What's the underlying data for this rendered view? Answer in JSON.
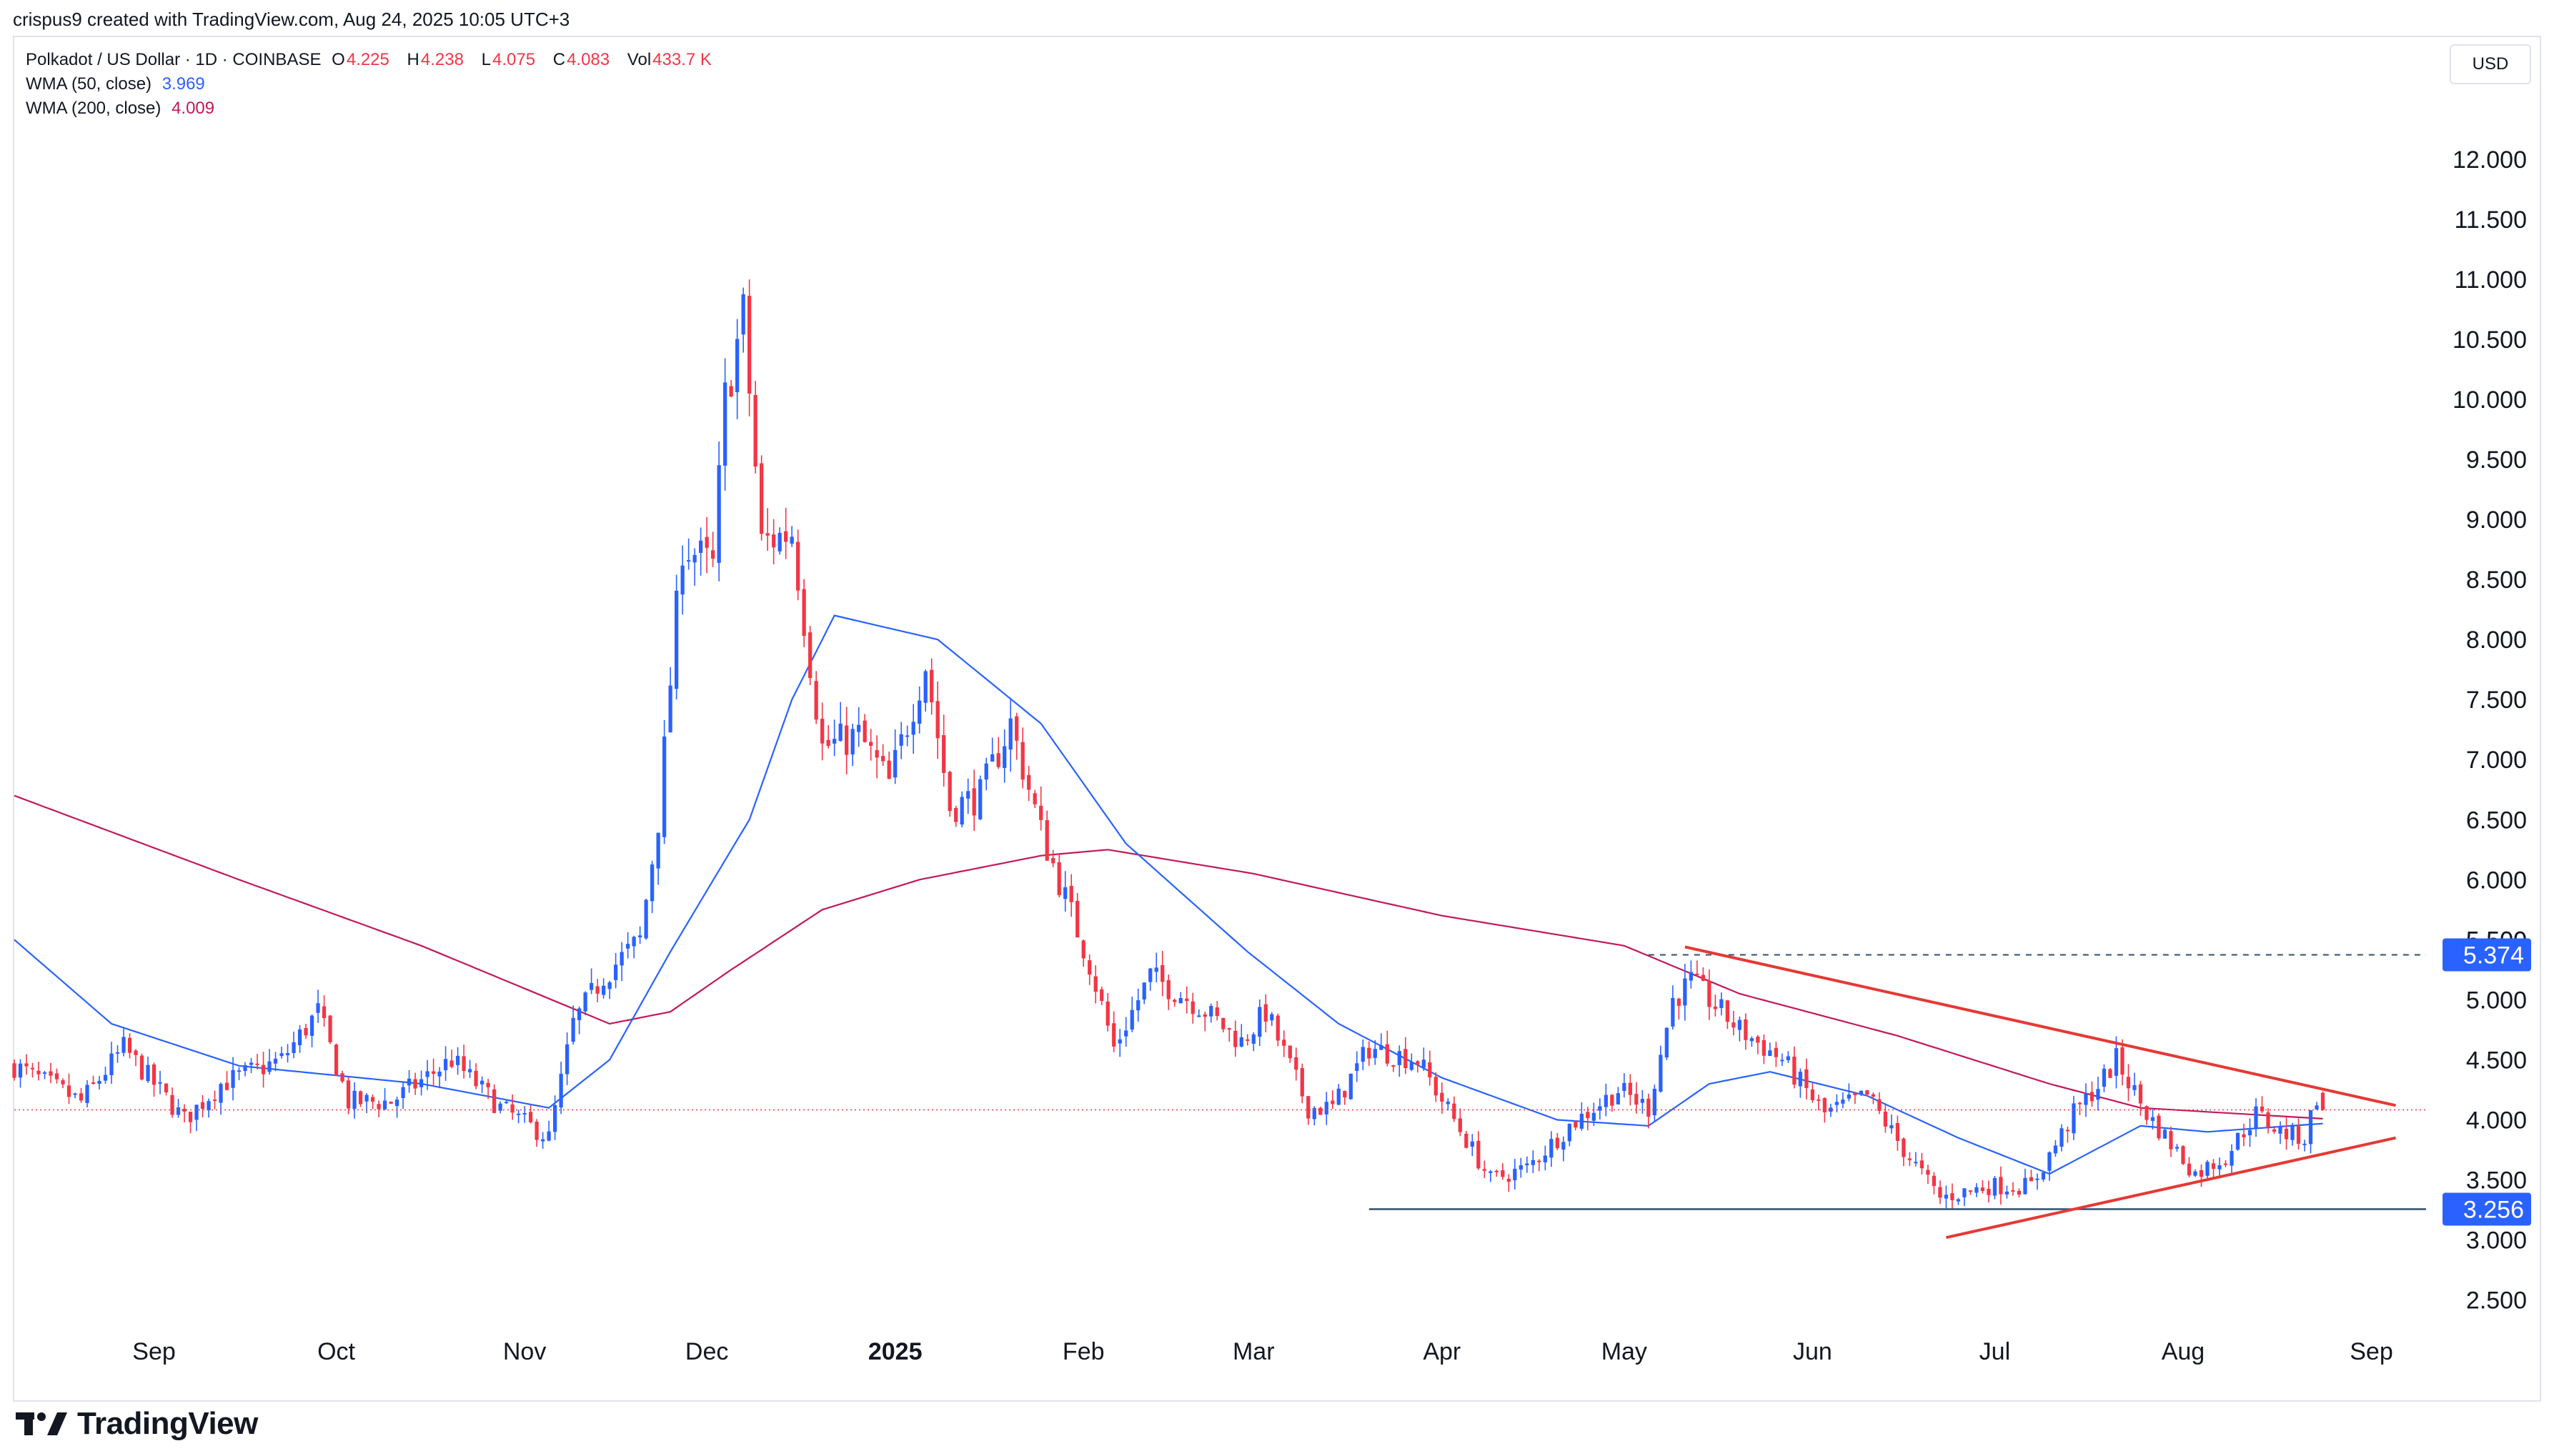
{
  "header": {
    "attribution": "crispus9 created with TradingView.com, Aug 24, 2025 10:05 UTC+3"
  },
  "legend": {
    "symbol": "Polkadot / US Dollar · 1D · COINBASE",
    "open_key": "O",
    "open": "4.225",
    "high_key": "H",
    "high": "4.238",
    "low_key": "L",
    "low": "4.075",
    "close_key": "C",
    "close": "4.083",
    "vol_key": "Vol",
    "volume": "433.7 K",
    "wma50_label": "WMA (50, close)",
    "wma50_value": "3.969",
    "wma200_label": "WMA (200, close)",
    "wma200_value": "4.009"
  },
  "currency": "USD",
  "brand": {
    "name": "TradingView",
    "logo_icon": "tradingview-logo-icon"
  },
  "colors": {
    "up": "#2962ff",
    "down": "#f23645",
    "wma50": "#2962ff",
    "wma200": "#c2185b",
    "trendline": "#e53935",
    "price_tag": "#2962ff",
    "support": "#2f4f6f"
  },
  "chart_data": {
    "type": "candlestick",
    "title": "Polkadot / US Dollar · 1D · COINBASE",
    "ylim": [
      2.2,
      12.6
    ],
    "y_ticks": [
      "2.500",
      "3.000",
      "3.500",
      "4.000",
      "4.500",
      "5.000",
      "5.500",
      "6.000",
      "6.500",
      "7.000",
      "7.500",
      "8.000",
      "8.500",
      "9.000",
      "9.500",
      "10.000",
      "10.500",
      "11.000",
      "11.500",
      "12.000"
    ],
    "x_ticks": [
      {
        "label": "Sep",
        "date": "2024-09-01"
      },
      {
        "label": "Oct",
        "date": "2024-10-01"
      },
      {
        "label": "Nov",
        "date": "2024-11-01"
      },
      {
        "label": "Dec",
        "date": "2024-12-01"
      },
      {
        "label": "2025",
        "date": "2025-01-01",
        "bold": true
      },
      {
        "label": "Feb",
        "date": "2025-02-01"
      },
      {
        "label": "Mar",
        "date": "2025-03-01"
      },
      {
        "label": "Apr",
        "date": "2025-04-01"
      },
      {
        "label": "May",
        "date": "2025-05-01"
      },
      {
        "label": "Jun",
        "date": "2025-06-01"
      },
      {
        "label": "Jul",
        "date": "2025-07-01"
      },
      {
        "label": "Aug",
        "date": "2025-08-01"
      },
      {
        "label": "Sep",
        "date": "2025-09-01"
      }
    ],
    "x_range": [
      "2024-08-09",
      "2025-09-10"
    ],
    "close_anchors": [
      [
        "2024-08-09",
        4.45
      ],
      [
        "2024-08-20",
        4.15
      ],
      [
        "2024-08-27",
        4.6
      ],
      [
        "2024-09-06",
        4.0
      ],
      [
        "2024-09-12",
        4.3
      ],
      [
        "2024-09-22",
        4.5
      ],
      [
        "2024-09-28",
        4.9
      ],
      [
        "2024-10-03",
        4.15
      ],
      [
        "2024-10-10",
        4.15
      ],
      [
        "2024-10-20",
        4.5
      ],
      [
        "2024-10-28",
        4.1
      ],
      [
        "2024-11-05",
        3.85
      ],
      [
        "2024-11-09",
        4.8
      ],
      [
        "2024-11-14",
        5.2
      ],
      [
        "2024-11-20",
        5.5
      ],
      [
        "2024-11-23",
        6.5
      ],
      [
        "2024-11-27",
        8.8
      ],
      [
        "2024-12-02",
        8.6
      ],
      [
        "2024-12-04",
        10.0
      ],
      [
        "2024-12-07",
        10.7
      ],
      [
        "2024-12-10",
        8.8
      ],
      [
        "2024-12-15",
        8.9
      ],
      [
        "2024-12-20",
        7.1
      ],
      [
        "2024-12-26",
        7.2
      ],
      [
        "2024-12-31",
        6.8
      ],
      [
        "2025-01-06",
        7.8
      ],
      [
        "2025-01-10",
        6.6
      ],
      [
        "2025-01-15",
        6.7
      ],
      [
        "2025-01-20",
        7.3
      ],
      [
        "2025-01-25",
        6.4
      ],
      [
        "2025-02-02",
        5.3
      ],
      [
        "2025-02-06",
        4.6
      ],
      [
        "2025-02-12",
        5.2
      ],
      [
        "2025-02-20",
        4.95
      ],
      [
        "2025-02-27",
        4.65
      ],
      [
        "2025-03-03",
        4.9
      ],
      [
        "2025-03-10",
        4.1
      ],
      [
        "2025-03-14",
        4.1
      ],
      [
        "2025-03-20",
        4.6
      ],
      [
        "2025-03-28",
        4.5
      ],
      [
        "2025-04-03",
        4.0
      ],
      [
        "2025-04-09",
        3.5
      ],
      [
        "2025-04-15",
        3.6
      ],
      [
        "2025-04-22",
        3.95
      ],
      [
        "2025-04-30",
        4.25
      ],
      [
        "2025-05-05",
        4.1
      ],
      [
        "2025-05-09",
        5.0
      ],
      [
        "2025-05-12",
        5.15
      ],
      [
        "2025-05-20",
        4.75
      ],
      [
        "2025-05-27",
        4.5
      ],
      [
        "2025-06-03",
        4.05
      ],
      [
        "2025-06-10",
        4.2
      ],
      [
        "2025-06-16",
        3.75
      ],
      [
        "2025-06-22",
        3.35
      ],
      [
        "2025-06-30",
        3.45
      ],
      [
        "2025-07-07",
        3.45
      ],
      [
        "2025-07-14",
        4.05
      ],
      [
        "2025-07-19",
        4.35
      ],
      [
        "2025-07-21",
        4.5
      ],
      [
        "2025-07-26",
        4.05
      ],
      [
        "2025-07-30",
        3.8
      ],
      [
        "2025-08-03",
        3.55
      ],
      [
        "2025-08-08",
        3.7
      ],
      [
        "2025-08-13",
        4.05
      ],
      [
        "2025-08-17",
        3.9
      ],
      [
        "2025-08-21",
        3.85
      ],
      [
        "2025-08-23",
        4.2
      ],
      [
        "2025-08-24",
        4.083
      ]
    ],
    "wma50_anchors": [
      [
        "2024-08-09",
        5.5
      ],
      [
        "2024-08-25",
        4.8
      ],
      [
        "2024-09-15",
        4.45
      ],
      [
        "2024-10-15",
        4.3
      ],
      [
        "2024-11-05",
        4.1
      ],
      [
        "2024-11-15",
        4.5
      ],
      [
        "2024-11-25",
        5.4
      ],
      [
        "2024-12-08",
        6.5
      ],
      [
        "2024-12-15",
        7.5
      ],
      [
        "2024-12-22",
        8.2
      ],
      [
        "2025-01-08",
        8.0
      ],
      [
        "2025-01-25",
        7.3
      ],
      [
        "2025-02-08",
        6.3
      ],
      [
        "2025-02-28",
        5.4
      ],
      [
        "2025-03-15",
        4.8
      ],
      [
        "2025-04-01",
        4.35
      ],
      [
        "2025-04-20",
        4.0
      ],
      [
        "2025-05-05",
        3.95
      ],
      [
        "2025-05-15",
        4.3
      ],
      [
        "2025-05-25",
        4.4
      ],
      [
        "2025-06-10",
        4.2
      ],
      [
        "2025-06-25",
        3.85
      ],
      [
        "2025-07-10",
        3.55
      ],
      [
        "2025-07-25",
        3.95
      ],
      [
        "2025-08-05",
        3.9
      ],
      [
        "2025-08-24",
        3.969
      ]
    ],
    "wma200_anchors": [
      [
        "2024-08-09",
        6.7
      ],
      [
        "2024-09-15",
        6.0
      ],
      [
        "2024-10-15",
        5.45
      ],
      [
        "2024-11-15",
        4.8
      ],
      [
        "2024-11-25",
        4.9
      ],
      [
        "2024-12-05",
        5.25
      ],
      [
        "2024-12-20",
        5.75
      ],
      [
        "2025-01-05",
        6.0
      ],
      [
        "2025-01-25",
        6.2
      ],
      [
        "2025-02-05",
        6.25
      ],
      [
        "2025-03-01",
        6.05
      ],
      [
        "2025-04-01",
        5.7
      ],
      [
        "2025-05-01",
        5.45
      ],
      [
        "2025-05-20",
        5.05
      ],
      [
        "2025-06-15",
        4.7
      ],
      [
        "2025-07-10",
        4.3
      ],
      [
        "2025-07-25",
        4.1
      ],
      [
        "2025-08-24",
        4.009
      ]
    ],
    "annotations": {
      "resistance_level": 5.374,
      "support_level": 3.256,
      "last_price_line": 4.083,
      "upper_trendline": {
        "from": [
          "2025-05-11",
          5.44
        ],
        "to": [
          "2025-09-05",
          4.12
        ]
      },
      "lower_trendline": {
        "from": [
          "2025-06-23",
          3.02
        ],
        "to": [
          "2025-09-05",
          3.85
        ]
      },
      "resistance_dashed_from": "2025-05-05",
      "support_line_from": "2025-03-20"
    },
    "price_tags": [
      "5.374",
      "3.256"
    ],
    "hidden_tick": "5.500"
  }
}
